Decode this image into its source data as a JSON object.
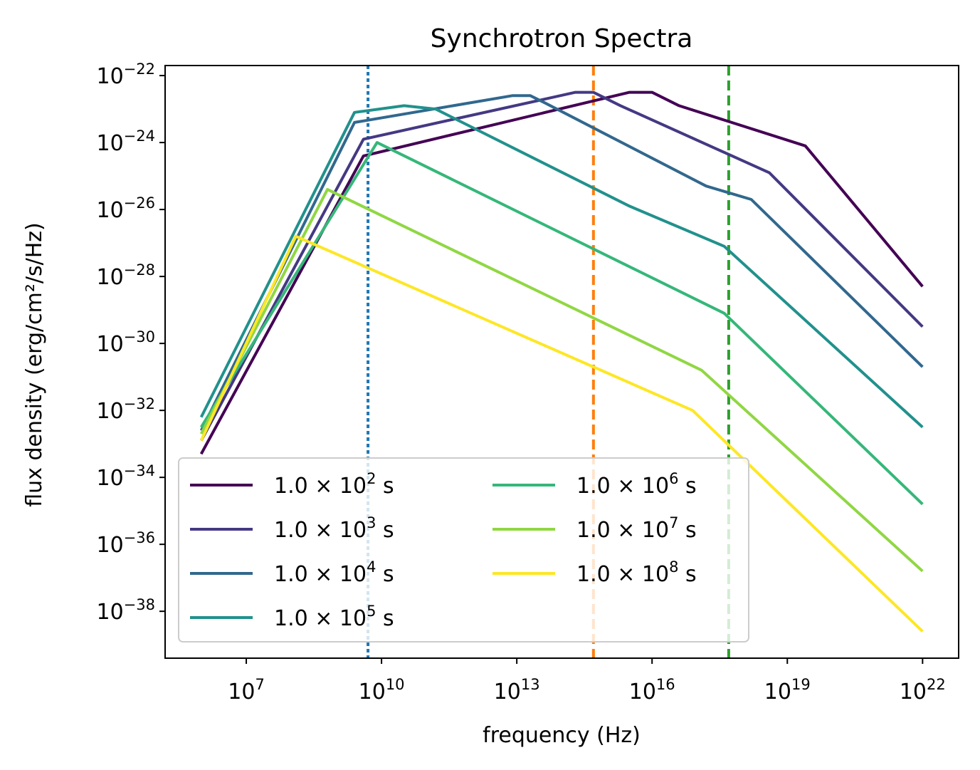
{
  "chart_data": {
    "type": "line",
    "title": "Synchrotron Spectra",
    "xlabel": "frequency (Hz)",
    "ylabel": "flux density (erg/cm²/s/Hz)",
    "x_scale": "log",
    "y_scale": "log",
    "xlim_log10": [
      5.2,
      22.8
    ],
    "ylim_log10": [
      -39.4,
      -21.7
    ],
    "grid": false,
    "legend_position": "lower-left",
    "legend_columns": 2,
    "x_ticks": [
      {
        "exp": 7,
        "base": "10",
        "sup": "7"
      },
      {
        "exp": 10,
        "base": "10",
        "sup": "10"
      },
      {
        "exp": 13,
        "base": "10",
        "sup": "13"
      },
      {
        "exp": 16,
        "base": "10",
        "sup": "16"
      },
      {
        "exp": 19,
        "base": "10",
        "sup": "19"
      },
      {
        "exp": 22,
        "base": "10",
        "sup": "22"
      }
    ],
    "y_ticks": [
      {
        "exp": -22,
        "base": "10",
        "sup": "−22"
      },
      {
        "exp": -24,
        "base": "10",
        "sup": "−24"
      },
      {
        "exp": -26,
        "base": "10",
        "sup": "−26"
      },
      {
        "exp": -28,
        "base": "10",
        "sup": "−28"
      },
      {
        "exp": -30,
        "base": "10",
        "sup": "−30"
      },
      {
        "exp": -32,
        "base": "10",
        "sup": "−32"
      },
      {
        "exp": -34,
        "base": "10",
        "sup": "−34"
      },
      {
        "exp": -36,
        "base": "10",
        "sup": "−36"
      },
      {
        "exp": -38,
        "base": "10",
        "sup": "−38"
      }
    ],
    "vlines": [
      {
        "log10_x": 9.7,
        "color": "#1f77b4",
        "style": "dotted"
      },
      {
        "log10_x": 14.7,
        "color": "#ff7f0e",
        "style": "dashed"
      },
      {
        "log10_x": 17.7,
        "color": "#2ca02c",
        "style": "dashed"
      }
    ],
    "series": [
      {
        "name_main": "1.0 × 10",
        "name_sup": "2",
        "name_suffix": " s",
        "color": "#440154",
        "points": [
          [
            6,
            -33.3
          ],
          [
            9.6,
            -24.4
          ],
          [
            15.5,
            -22.5
          ],
          [
            16,
            -22.5
          ],
          [
            16.6,
            -22.9
          ],
          [
            19.4,
            -24.1
          ],
          [
            22,
            -28.3
          ]
        ]
      },
      {
        "name_main": "1.0 × 10",
        "name_sup": "3",
        "name_suffix": " s",
        "color": "#443983",
        "points": [
          [
            6,
            -32.9
          ],
          [
            9.6,
            -23.9
          ],
          [
            14.3,
            -22.5
          ],
          [
            14.7,
            -22.5
          ],
          [
            15.3,
            -22.9
          ],
          [
            18.6,
            -24.9
          ],
          [
            22,
            -29.5
          ]
        ]
      },
      {
        "name_main": "1.0 × 10",
        "name_sup": "4",
        "name_suffix": " s",
        "color": "#31688e",
        "points": [
          [
            6,
            -32.6
          ],
          [
            9.4,
            -23.4
          ],
          [
            12.9,
            -22.6
          ],
          [
            13.3,
            -22.6
          ],
          [
            13.6,
            -22.8
          ],
          [
            17.2,
            -25.3
          ],
          [
            18.2,
            -25.7
          ],
          [
            22,
            -30.7
          ]
        ]
      },
      {
        "name_main": "1.0 × 10",
        "name_sup": "5",
        "name_suffix": " s",
        "color": "#21918c",
        "points": [
          [
            6,
            -32.2
          ],
          [
            9.4,
            -23.1
          ],
          [
            10.5,
            -22.9
          ],
          [
            11.2,
            -23.0
          ],
          [
            15.5,
            -25.9
          ],
          [
            17.6,
            -27.1
          ],
          [
            22,
            -32.5
          ]
        ]
      },
      {
        "name_main": "1.0 × 10",
        "name_sup": "6",
        "name_suffix": " s",
        "color": "#35b779",
        "points": [
          [
            6,
            -32.5
          ],
          [
            9.9,
            -24.0
          ],
          [
            17.6,
            -29.1
          ],
          [
            22,
            -34.8
          ]
        ]
      },
      {
        "name_main": "1.0 × 10",
        "name_sup": "7",
        "name_suffix": " s",
        "color": "#90d743",
        "points": [
          [
            6,
            -32.7
          ],
          [
            8.8,
            -25.4
          ],
          [
            17.1,
            -30.8
          ],
          [
            22,
            -36.8
          ]
        ]
      },
      {
        "name_main": "1.0 × 10",
        "name_sup": "8",
        "name_suffix": " s",
        "color": "#fde725",
        "points": [
          [
            6,
            -32.9
          ],
          [
            8.1,
            -26.8
          ],
          [
            16.9,
            -32.0
          ],
          [
            22,
            -38.6
          ]
        ]
      }
    ]
  }
}
